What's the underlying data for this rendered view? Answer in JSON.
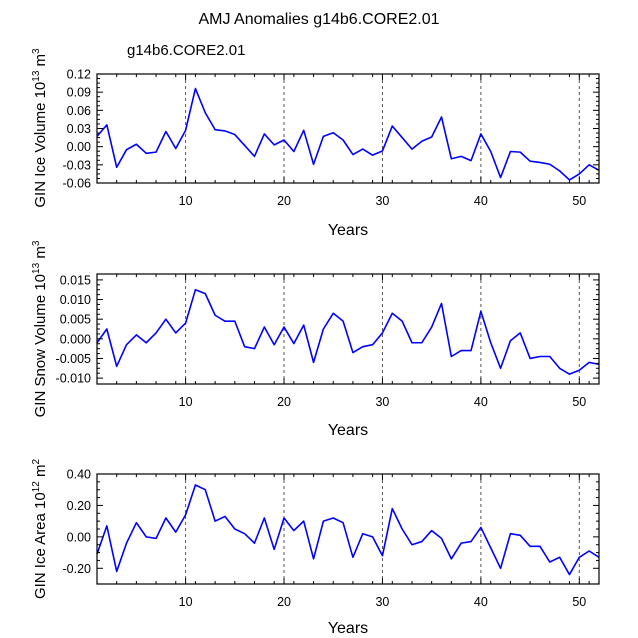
{
  "title": "AMJ Anomalies g14b6.CORE2.01",
  "series_label": "g14b6.CORE2.01",
  "colors": {
    "line": "#0000ff",
    "axis": "#000000",
    "grid": "#555555",
    "legend": "#0000ff"
  },
  "chart_data": [
    {
      "type": "line",
      "ylabel": "GIN Ice Volume 10",
      "ylabel_exp": "13",
      "ylabel_unit": " m",
      "ylabel_unit_exp": "3",
      "xlabel": "Years",
      "xlim": [
        1,
        52
      ],
      "ylim": [
        -0.06,
        0.12
      ],
      "yticks": [
        -0.06,
        -0.03,
        0.0,
        0.03,
        0.06,
        0.09,
        0.12
      ],
      "ytick_labels": [
        "-0.06",
        "-0.03",
        "0.00",
        "0.03",
        "0.06",
        "0.09",
        "0.12"
      ],
      "xticks": [
        10,
        20,
        30,
        40,
        50
      ],
      "xtick_labels": [
        "10",
        "20",
        "30",
        "40",
        "50"
      ],
      "vlines": [
        10,
        20,
        30,
        40,
        50
      ],
      "x": [
        1,
        2,
        3,
        4,
        5,
        6,
        7,
        8,
        9,
        10,
        11,
        12,
        13,
        14,
        15,
        16,
        17,
        18,
        19,
        20,
        21,
        22,
        23,
        24,
        25,
        26,
        27,
        28,
        29,
        30,
        31,
        32,
        33,
        34,
        35,
        36,
        37,
        38,
        39,
        40,
        41,
        42,
        43,
        44,
        45,
        46,
        47,
        48,
        49,
        50,
        51,
        52
      ],
      "values": [
        0.017,
        0.036,
        -0.034,
        -0.005,
        0.004,
        -0.011,
        -0.009,
        0.025,
        -0.003,
        0.027,
        0.096,
        0.056,
        0.028,
        0.026,
        0.02,
        0.002,
        -0.016,
        0.021,
        0.003,
        0.011,
        -0.008,
        0.027,
        -0.029,
        0.017,
        0.023,
        0.011,
        -0.013,
        -0.004,
        -0.014,
        -0.007,
        0.034,
        0.015,
        -0.004,
        0.009,
        0.016,
        0.049,
        -0.02,
        -0.016,
        -0.023,
        0.021,
        -0.008,
        -0.051,
        -0.008,
        -0.009,
        -0.024,
        -0.026,
        -0.029,
        -0.04,
        -0.055,
        -0.045,
        -0.03,
        -0.039
      ]
    },
    {
      "type": "line",
      "ylabel": "GIN Snow Volume 10",
      "ylabel_exp": "13",
      "ylabel_unit": " m",
      "ylabel_unit_exp": "3",
      "xlabel": "Years",
      "xlim": [
        1,
        52
      ],
      "ylim": [
        -0.0115,
        0.0165
      ],
      "yticks": [
        -0.01,
        -0.005,
        0.0,
        0.005,
        0.01,
        0.015
      ],
      "ytick_labels": [
        "-0.010",
        "-0.005",
        "0.000",
        "0.005",
        "0.010",
        "0.015"
      ],
      "xticks": [
        10,
        20,
        30,
        40,
        50
      ],
      "xtick_labels": [
        "10",
        "20",
        "30",
        "40",
        "50"
      ],
      "vlines": [
        10,
        20,
        30,
        40,
        50
      ],
      "x": [
        1,
        2,
        3,
        4,
        5,
        6,
        7,
        8,
        9,
        10,
        11,
        12,
        13,
        14,
        15,
        16,
        17,
        18,
        19,
        20,
        21,
        22,
        23,
        24,
        25,
        26,
        27,
        28,
        29,
        30,
        31,
        32,
        33,
        34,
        35,
        36,
        37,
        38,
        39,
        40,
        41,
        42,
        43,
        44,
        45,
        46,
        47,
        48,
        49,
        50,
        51,
        52
      ],
      "values": [
        -0.001,
        0.0025,
        -0.007,
        -0.0015,
        0.001,
        -0.001,
        0.0015,
        0.005,
        0.0015,
        0.004,
        0.0125,
        0.0115,
        0.006,
        0.0045,
        0.0045,
        -0.002,
        -0.0025,
        0.003,
        -0.0015,
        0.003,
        -0.0012,
        0.0035,
        -0.006,
        0.0025,
        0.0065,
        0.0045,
        -0.0035,
        -0.002,
        -0.0015,
        0.0015,
        0.0065,
        0.0045,
        -0.001,
        -0.001,
        0.003,
        0.009,
        -0.0045,
        -0.003,
        -0.003,
        0.007,
        -0.001,
        -0.0075,
        -0.0005,
        0.0015,
        -0.005,
        -0.0045,
        -0.0045,
        -0.0075,
        -0.009,
        -0.008,
        -0.006,
        -0.0065
      ]
    },
    {
      "type": "line",
      "ylabel": "GIN Ice Area 10",
      "ylabel_exp": "12",
      "ylabel_unit": " m",
      "ylabel_unit_exp": "2",
      "xlabel": "Years",
      "xlim": [
        1,
        52
      ],
      "ylim": [
        -0.3,
        0.4
      ],
      "yticks": [
        -0.2,
        0.0,
        0.2,
        0.4
      ],
      "ytick_labels": [
        "-0.20",
        "0.00",
        "0.20",
        "0.40"
      ],
      "xticks": [
        10,
        20,
        30,
        40,
        50
      ],
      "xtick_labels": [
        "10",
        "20",
        "30",
        "40",
        "50"
      ],
      "vlines": [
        10,
        20,
        30,
        40,
        50
      ],
      "x": [
        1,
        2,
        3,
        4,
        5,
        6,
        7,
        8,
        9,
        10,
        11,
        12,
        13,
        14,
        15,
        16,
        17,
        18,
        19,
        20,
        21,
        22,
        23,
        24,
        25,
        26,
        27,
        28,
        29,
        30,
        31,
        32,
        33,
        34,
        35,
        36,
        37,
        38,
        39,
        40,
        41,
        42,
        43,
        44,
        45,
        46,
        47,
        48,
        49,
        50,
        51,
        52
      ],
      "values": [
        -0.11,
        0.07,
        -0.22,
        -0.04,
        0.09,
        0.0,
        -0.01,
        0.12,
        0.03,
        0.14,
        0.33,
        0.3,
        0.1,
        0.13,
        0.05,
        0.02,
        -0.04,
        0.12,
        -0.08,
        0.12,
        0.04,
        0.1,
        -0.14,
        0.1,
        0.12,
        0.09,
        -0.13,
        0.02,
        0.0,
        -0.12,
        0.18,
        0.05,
        -0.05,
        -0.03,
        0.04,
        -0.01,
        -0.14,
        -0.04,
        -0.03,
        0.06,
        -0.07,
        -0.2,
        0.02,
        0.01,
        -0.06,
        -0.06,
        -0.16,
        -0.13,
        -0.24,
        -0.13,
        -0.09,
        -0.13
      ]
    }
  ]
}
